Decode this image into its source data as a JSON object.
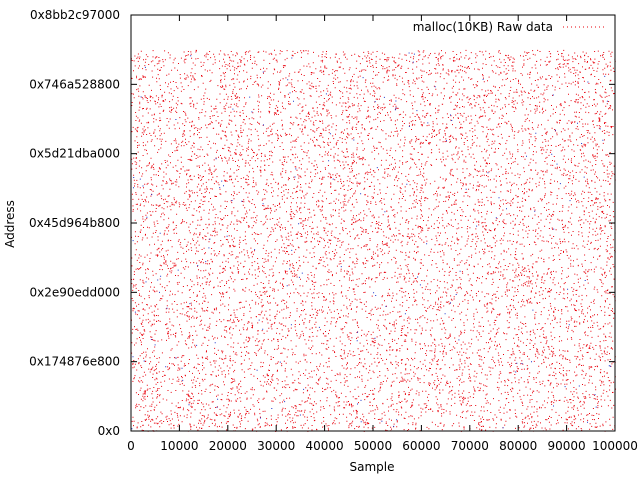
{
  "chart_data": {
    "type": "scatter",
    "title": "",
    "xlabel": "Sample",
    "ylabel": "Address",
    "xlim": [
      0,
      100000
    ],
    "ylim_hex": [
      "0x0",
      "0x8bb2c97000"
    ],
    "x_ticks": [
      "0",
      "10000",
      "20000",
      "30000",
      "40000",
      "50000",
      "60000",
      "70000",
      "80000",
      "90000",
      "100000"
    ],
    "y_ticks": [
      "0x0",
      "0x174876e800",
      "0x2e90edd000",
      "0x45d964b800",
      "0x5d21dba000",
      "0x746a528800",
      "0x8bb2c97000"
    ],
    "grid": false,
    "legend_position": "top-right",
    "series": [
      {
        "name": "malloc(10KB) Raw data",
        "color": "#e8000b",
        "secondary_color": "#1a33cc",
        "x_range": [
          0,
          100000
        ],
        "y_range_hex": [
          "0x0",
          "0x8000000000"
        ],
        "distribution": "uniform-random"
      }
    ]
  }
}
